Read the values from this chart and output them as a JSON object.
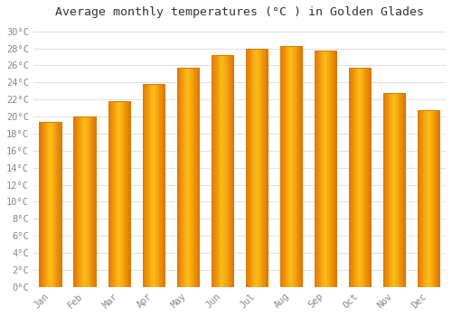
{
  "title": "Average monthly temperatures (°C ) in Golden Glades",
  "months": [
    "Jan",
    "Feb",
    "Mar",
    "Apr",
    "May",
    "Jun",
    "Jul",
    "Aug",
    "Sep",
    "Oct",
    "Nov",
    "Dec"
  ],
  "values": [
    19.4,
    20.0,
    21.8,
    23.8,
    25.7,
    27.2,
    28.0,
    28.3,
    27.7,
    25.7,
    22.8,
    20.7
  ],
  "bar_color_center": "#FFB800",
  "bar_color_edge": "#E07800",
  "bar_color_light": "#FFD060",
  "ytick_labels": [
    "0°C",
    "2°C",
    "4°C",
    "6°C",
    "8°C",
    "10°C",
    "12°C",
    "14°C",
    "16°C",
    "18°C",
    "20°C",
    "22°C",
    "24°C",
    "26°C",
    "28°C",
    "30°C"
  ],
  "ytick_values": [
    0,
    2,
    4,
    6,
    8,
    10,
    12,
    14,
    16,
    18,
    20,
    22,
    24,
    26,
    28,
    30
  ],
  "ylim": [
    0,
    31
  ],
  "background_color": "#ffffff",
  "grid_color": "#e0e0e8",
  "title_fontsize": 9.5,
  "tick_fontsize": 7.5,
  "tick_color": "#888888",
  "font_family": "monospace"
}
